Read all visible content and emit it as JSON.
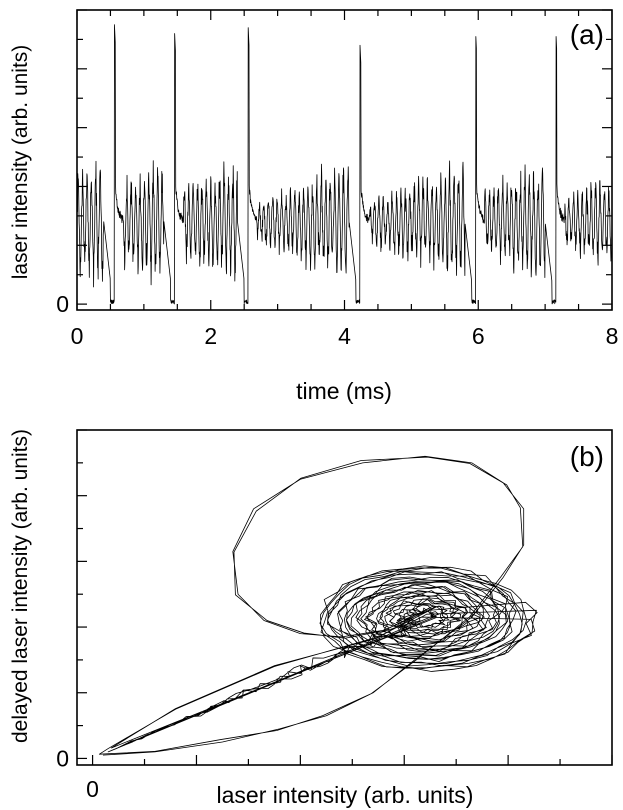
{
  "chart_data": [
    {
      "type": "line",
      "panel_label": "(a)",
      "xlabel": "time (ms)",
      "ylabel": "laser intensity (arb. units)",
      "xlim": [
        0,
        8
      ],
      "ylim": [
        -0.2,
        10
      ],
      "x_ticks": [
        "0",
        "2",
        "4",
        "6",
        "8"
      ],
      "y_ticks": [
        "0"
      ],
      "grid": false,
      "baseline_level": 2.8,
      "peak_level": 9.5,
      "series": [
        {
          "x": [
            0.0,
            0.5,
            0.56,
            0.6,
            1.4,
            1.46,
            1.5,
            2.5,
            2.56,
            2.6,
            4.17,
            4.23,
            4.27,
            5.9,
            5.96,
            6.0,
            7.1,
            7.16,
            7.2,
            8.0
          ],
          "y": [
            2.8,
            0.0,
            0.0,
            9.5,
            0.0,
            0.0,
            9.2,
            0.0,
            0.0,
            9.4,
            0.0,
            0.0,
            8.9,
            0.0,
            0.0,
            9.3,
            0.0,
            0.0,
            9.3,
            2.8
          ]
        }
      ],
      "events": {
        "dropout_start_ms": [
          0.5,
          1.4,
          2.5,
          4.17,
          5.9,
          7.1
        ],
        "spike_peaks": [
          9.5,
          9.2,
          9.4,
          8.9,
          9.3,
          9.3
        ]
      }
    },
    {
      "type": "line",
      "panel_label": "(b)",
      "xlabel": "laser intensity (arb. units)",
      "ylabel": "delayed laser intensity (arb. units)",
      "xlim": [
        -0.3,
        10
      ],
      "ylim": [
        -0.2,
        10
      ],
      "x_ticks": [
        "0"
      ],
      "y_ticks": [
        "0"
      ],
      "grid": false,
      "series": [
        {
          "x": [
            0.2,
            1.2,
            2.5,
            3.6,
            4.5,
            5.4,
            6.2,
            7.3,
            7.9,
            8.3,
            8.3,
            7.9,
            7.3,
            6.4,
            5.2,
            4.0,
            3.1,
            2.7,
            2.8,
            3.3,
            4.0,
            4.8,
            5.6,
            6.6,
            5.5,
            3.5,
            1.6,
            0.3
          ],
          "y": [
            0.1,
            0.2,
            0.5,
            0.9,
            1.3,
            2.0,
            3.0,
            4.3,
            5.5,
            6.5,
            7.6,
            8.4,
            9.0,
            9.2,
            9.0,
            8.5,
            7.6,
            6.3,
            5.0,
            4.2,
            3.8,
            3.7,
            3.9,
            4.6,
            3.7,
            2.8,
            1.5,
            0.3
          ]
        }
      ]
    }
  ]
}
